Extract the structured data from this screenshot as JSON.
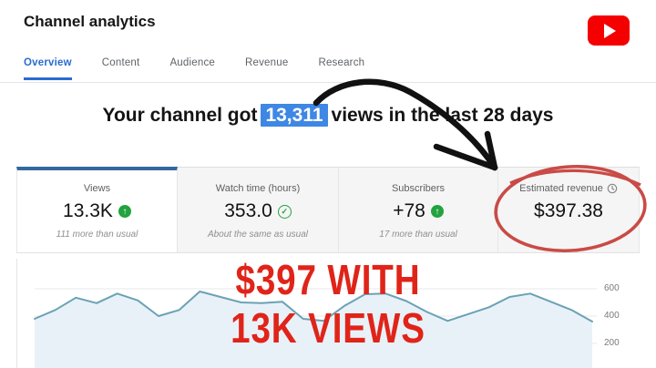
{
  "page": {
    "title": "Channel analytics"
  },
  "tabs": [
    {
      "label": "Overview",
      "active": true
    },
    {
      "label": "Content",
      "active": false
    },
    {
      "label": "Audience",
      "active": false
    },
    {
      "label": "Revenue",
      "active": false
    },
    {
      "label": "Research",
      "active": false
    }
  ],
  "headline": {
    "prefix": "Your channel got",
    "highlight": "13,311",
    "suffix": "views in the last 28 days"
  },
  "metric_cards": [
    {
      "label": "Views",
      "value": "13.3K",
      "trend": "up",
      "note": "111 more than usual",
      "selected": true
    },
    {
      "label": "Watch time (hours)",
      "value": "353.0",
      "trend": "same",
      "note": "About the same as usual",
      "selected": false
    },
    {
      "label": "Subscribers",
      "value": "+78",
      "trend": "up",
      "note": "17 more than usual",
      "selected": false
    },
    {
      "label": "Estimated revenue",
      "value": "$397.38",
      "trend": "none",
      "note": "",
      "selected": false
    }
  ],
  "icons": {
    "up_arrow": "↑",
    "check": "✓"
  },
  "colors": {
    "youtube_red": "#f50000",
    "tab_active": "#2a6bd2",
    "card_selected_bar": "#33689e",
    "trend_green": "#23a33e",
    "highlight_blue": "#3e87e4"
  },
  "annotations": {
    "overlay_text_line1": "$397 WITH",
    "overlay_text_line2": "13K VIEWS",
    "text_color": "#e02419",
    "circle_color": "#c94b46",
    "arrow_color": "#111111"
  },
  "chart_data": {
    "type": "area",
    "title": "",
    "xlabel": "",
    "ylabel": "",
    "x_unit": "day of last 28 days",
    "x": [
      1,
      2,
      3,
      4,
      5,
      6,
      7,
      8,
      9,
      10,
      11,
      12,
      13,
      14,
      15,
      16,
      17,
      18,
      19,
      20,
      21,
      22,
      23,
      24,
      25,
      26,
      27,
      28
    ],
    "values": [
      380,
      445,
      535,
      495,
      565,
      515,
      400,
      445,
      580,
      540,
      500,
      495,
      505,
      380,
      365,
      475,
      560,
      565,
      510,
      430,
      365,
      415,
      465,
      540,
      565,
      505,
      445,
      360
    ],
    "yticks": [
      600,
      400,
      200
    ],
    "ylim": [
      0,
      800
    ],
    "grid": true,
    "legend": "none",
    "line_color": "#6aa2b4",
    "fill_color": "#e9f1f8"
  }
}
